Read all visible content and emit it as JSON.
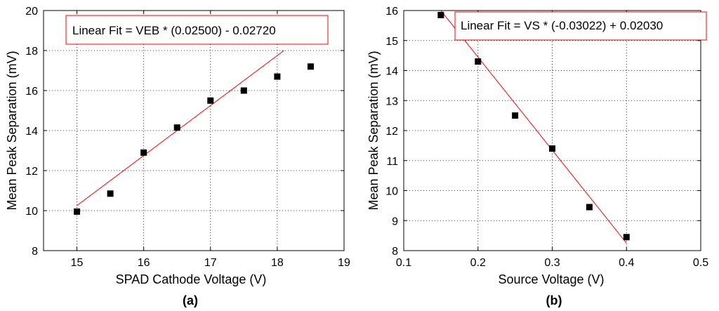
{
  "chart_data": [
    {
      "type": "scatter",
      "panel_label": "(a)",
      "xlabel": "SPAD Cathode Voltage (V)",
      "ylabel": "Mean Peak Separation (mV)",
      "xlim": [
        14.5,
        19
      ],
      "ylim": [
        8,
        20
      ],
      "xticks": [
        "15",
        "16",
        "17",
        "18",
        "19"
      ],
      "yticks": [
        "8",
        "10",
        "12",
        "14",
        "16",
        "18",
        "20"
      ],
      "grid": true,
      "annotation": "Linear Fit = VEB * (0.02500) - 0.02720",
      "points": {
        "x": [
          15,
          15.5,
          16,
          16.5,
          17,
          17.5,
          18,
          18.5
        ],
        "y": [
          9.95,
          10.85,
          12.9,
          14.15,
          15.5,
          16.0,
          16.7,
          17.2
        ]
      },
      "fit_line": {
        "x": [
          15,
          18.1
        ],
        "y": [
          10.25,
          18.0
        ]
      },
      "colors": {
        "points": "#000000",
        "fit": "#ff0000"
      }
    },
    {
      "type": "scatter",
      "panel_label": "(b)",
      "xlabel": "Source Voltage (V)",
      "ylabel": "Mean Peak Separation (mV)",
      "xlim": [
        0.1,
        0.5
      ],
      "ylim": [
        8,
        16
      ],
      "xticks": [
        "0.1",
        "0.2",
        "0.3",
        "0.4",
        "0.5"
      ],
      "yticks": [
        "8",
        "9",
        "10",
        "11",
        "12",
        "13",
        "14",
        "15",
        "16"
      ],
      "grid": true,
      "annotation": "Linear Fit = VS * (-0.03022) + 0.02030",
      "points": {
        "x": [
          0.15,
          0.2,
          0.25,
          0.3,
          0.35,
          0.4
        ],
        "y": [
          15.85,
          14.3,
          12.5,
          11.4,
          9.45,
          8.45
        ]
      },
      "fit_line": {
        "x": [
          0.15,
          0.4
        ],
        "y": [
          16.0,
          8.25
        ]
      },
      "colors": {
        "points": "#000000",
        "fit": "#ff0000"
      }
    }
  ]
}
